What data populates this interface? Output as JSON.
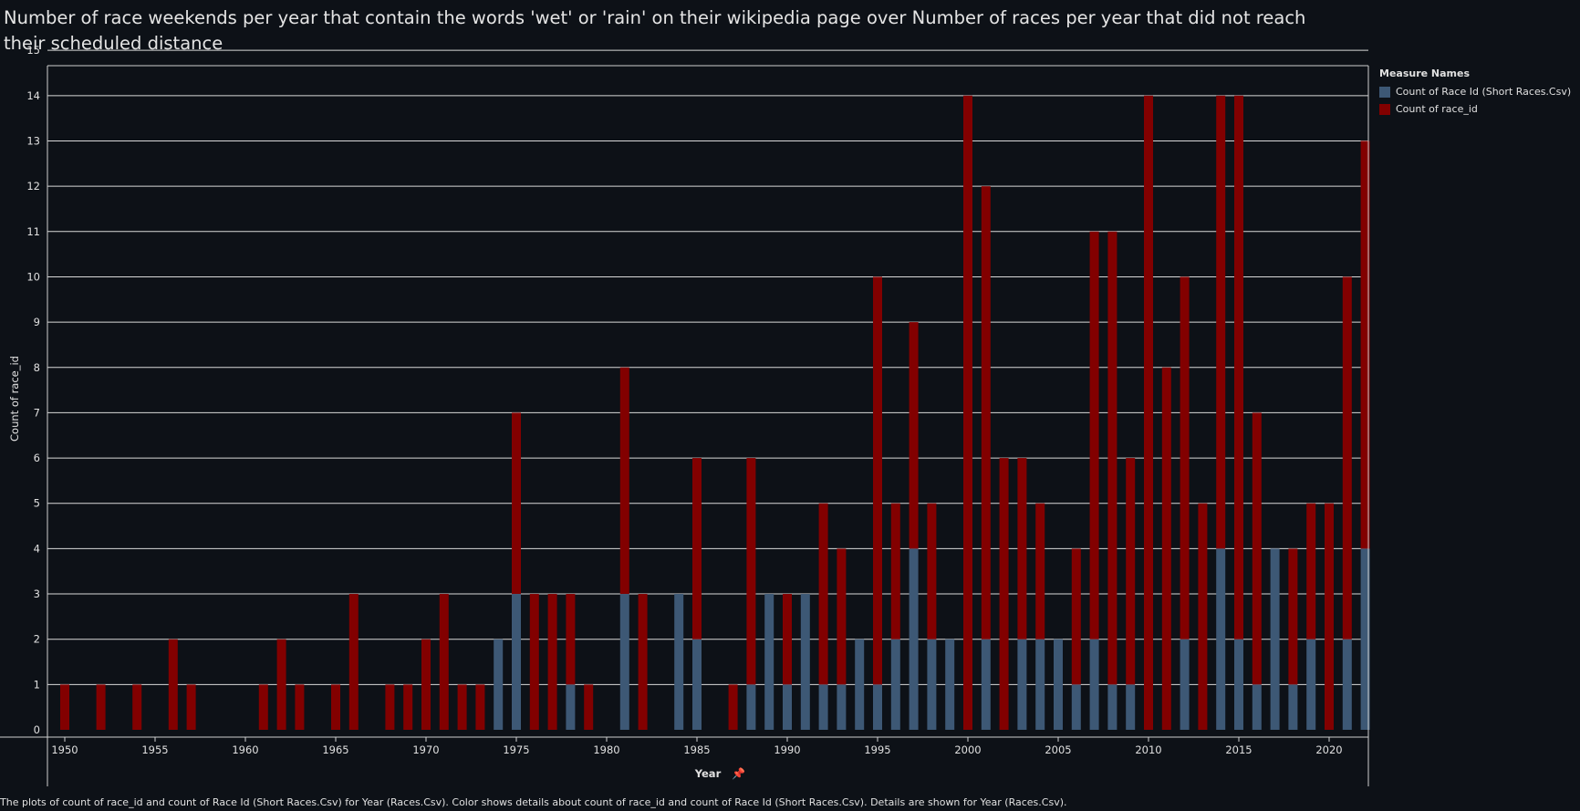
{
  "chart_data": {
    "type": "bar",
    "stacked": true,
    "title": "Number of race weekends per year that contain the words 'wet' or 'rain' on their wikipedia page over Number of races  per year that did not reach their scheduled distance",
    "xlabel": "Year",
    "ylabel": "Count of race_id",
    "ylim": [
      0,
      15
    ],
    "yticks": [
      0,
      1,
      2,
      3,
      4,
      5,
      6,
      7,
      8,
      9,
      10,
      11,
      12,
      13,
      14,
      15
    ],
    "xlim": [
      1949,
      2023
    ],
    "xticks": [
      1950,
      1955,
      1960,
      1965,
      1970,
      1975,
      1980,
      1985,
      1990,
      1995,
      2000,
      2005,
      2010,
      2015,
      2020
    ],
    "grid": true,
    "legend_title": "Measure Names",
    "legend_position": "right",
    "colors": {
      "short": "#3d5875",
      "total": "#820000"
    },
    "series": [
      {
        "name": "Count of Race Id (Short Races.Csv)",
        "key": "short",
        "points": [
          [
            1974,
            2
          ],
          [
            1975,
            3
          ],
          [
            1978,
            1
          ],
          [
            1981,
            3
          ],
          [
            1984,
            3
          ],
          [
            1985,
            2
          ],
          [
            1988,
            1
          ],
          [
            1989,
            3
          ],
          [
            1990,
            1
          ],
          [
            1991,
            3
          ],
          [
            1992,
            1
          ],
          [
            1993,
            1
          ],
          [
            1994,
            2
          ],
          [
            1995,
            1
          ],
          [
            1996,
            2
          ],
          [
            1997,
            4
          ],
          [
            1998,
            2
          ],
          [
            1999,
            2
          ],
          [
            2001,
            2
          ],
          [
            2003,
            2
          ],
          [
            2004,
            2
          ],
          [
            2005,
            2
          ],
          [
            2006,
            1
          ],
          [
            2007,
            2
          ],
          [
            2008,
            1
          ],
          [
            2009,
            1
          ],
          [
            2012,
            2
          ],
          [
            2014,
            4
          ],
          [
            2015,
            2
          ],
          [
            2016,
            1
          ],
          [
            2017,
            4
          ],
          [
            2018,
            1
          ],
          [
            2019,
            2
          ],
          [
            2021,
            2
          ],
          [
            2022,
            4
          ]
        ]
      },
      {
        "name": "Count of race_id",
        "key": "total",
        "points": [
          [
            1950,
            1
          ],
          [
            1952,
            1
          ],
          [
            1954,
            1
          ],
          [
            1956,
            2
          ],
          [
            1957,
            1
          ],
          [
            1961,
            1
          ],
          [
            1962,
            2
          ],
          [
            1963,
            1
          ],
          [
            1965,
            1
          ],
          [
            1966,
            3
          ],
          [
            1968,
            1
          ],
          [
            1969,
            1
          ],
          [
            1970,
            2
          ],
          [
            1971,
            3
          ],
          [
            1972,
            1
          ],
          [
            1973,
            1
          ],
          [
            1975,
            4
          ],
          [
            1976,
            3
          ],
          [
            1977,
            3
          ],
          [
            1978,
            2
          ],
          [
            1979,
            1
          ],
          [
            1981,
            5
          ],
          [
            1982,
            3
          ],
          [
            1985,
            4
          ],
          [
            1987,
            1
          ],
          [
            1988,
            5
          ],
          [
            1990,
            2
          ],
          [
            1992,
            4
          ],
          [
            1993,
            3
          ],
          [
            1995,
            9
          ],
          [
            1996,
            3
          ],
          [
            1997,
            5
          ],
          [
            1998,
            3
          ],
          [
            2000,
            14
          ],
          [
            2001,
            10
          ],
          [
            2002,
            6
          ],
          [
            2003,
            4
          ],
          [
            2004,
            3
          ],
          [
            2006,
            3
          ],
          [
            2007,
            9
          ],
          [
            2008,
            10
          ],
          [
            2009,
            5
          ],
          [
            2010,
            14
          ],
          [
            2011,
            8
          ],
          [
            2012,
            8
          ],
          [
            2013,
            5
          ],
          [
            2014,
            10
          ],
          [
            2015,
            12
          ],
          [
            2016,
            6
          ],
          [
            2018,
            3
          ],
          [
            2019,
            3
          ],
          [
            2020,
            5
          ],
          [
            2021,
            8
          ],
          [
            2022,
            9
          ]
        ]
      }
    ]
  },
  "caption": "The plots of count of race_id and count of Race Id (Short Races.Csv) for Year (Races.Csv).  Color shows details about count of race_id and count of Race Id (Short Races.Csv).  Details are shown for Year (Races.Csv)."
}
